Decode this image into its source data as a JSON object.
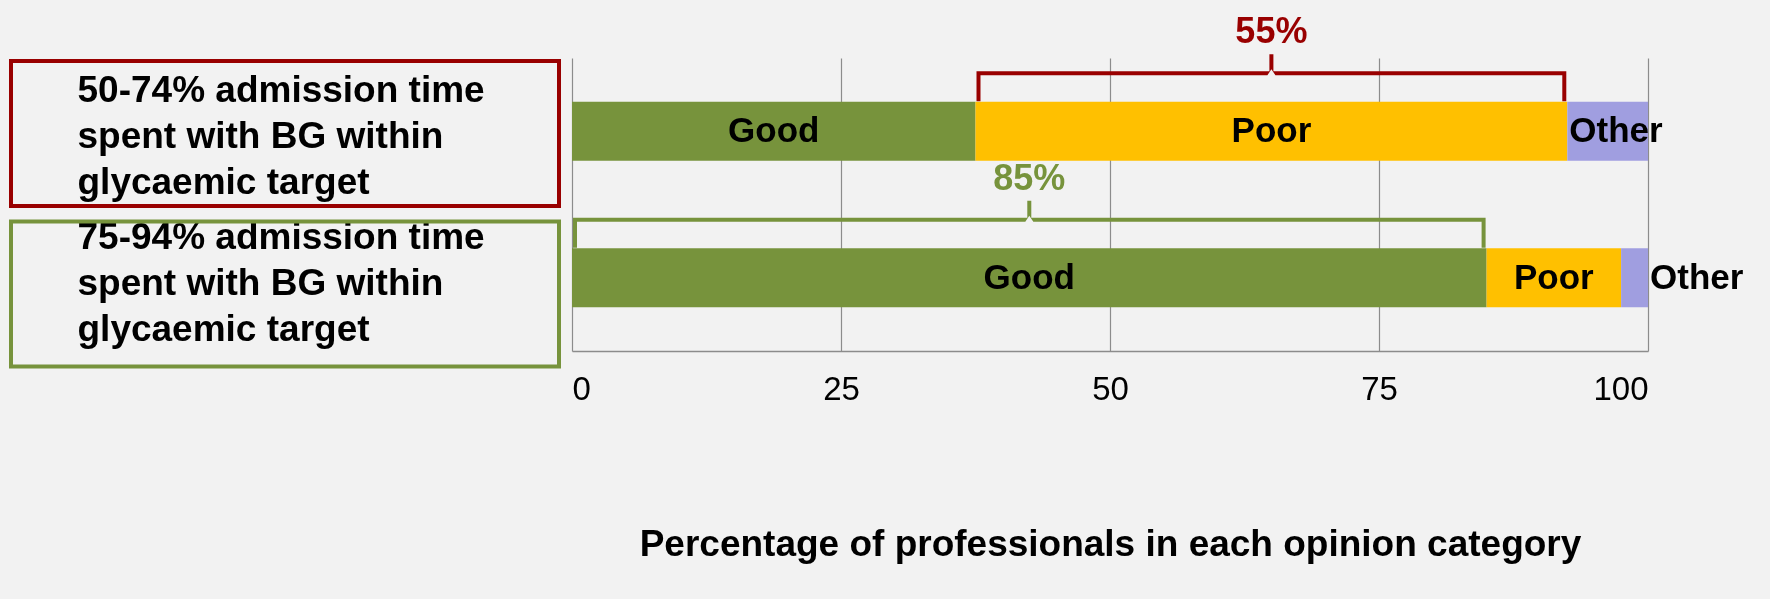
{
  "chart_data": {
    "type": "bar",
    "orientation": "horizontal",
    "stacked": true,
    "categories": [
      "50-74% admission time spent with BG within glycaemic target",
      "75-94% admission time spent with BG within glycaemic target"
    ],
    "series": [
      {
        "name": "Good",
        "color": "#77933c",
        "values": [
          37.5,
          85
        ]
      },
      {
        "name": "Poor",
        "color": "#ffc000",
        "values": [
          55,
          12.5
        ]
      },
      {
        "name": "Other",
        "color": "#a09ee0",
        "values": [
          7.5,
          2.5
        ]
      }
    ],
    "xlabel": "Percentage of professionals in each opinion category",
    "xlim": [
      0,
      100
    ],
    "xticks": [
      0,
      25,
      50,
      75,
      100
    ],
    "grid": "x",
    "legend": false,
    "annotations": [
      "55%",
      "85%"
    ]
  }
}
